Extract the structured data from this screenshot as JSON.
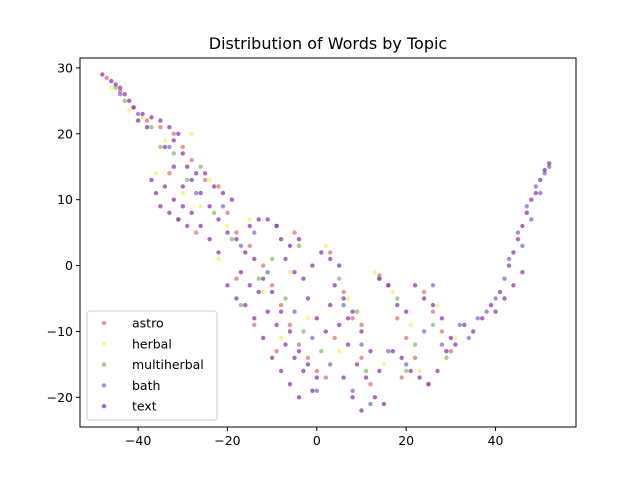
{
  "chart_data": {
    "type": "scatter",
    "title": "Distribution of Words by Topic",
    "xlabel": "",
    "ylabel": "",
    "xlim": [
      -53,
      58
    ],
    "ylim": [
      -24.5,
      31.5
    ],
    "xticks": [
      -40,
      -20,
      0,
      20,
      40
    ],
    "yticks": [
      -20,
      -10,
      0,
      10,
      20,
      30
    ],
    "grid": false,
    "legend": "lower-left",
    "series": [
      {
        "name": "astro",
        "color": "#e36a6a",
        "points": [
          [
            -47,
            28.5
          ],
          [
            -44,
            26.5
          ],
          [
            -41,
            24
          ],
          [
            -38,
            22
          ],
          [
            -35,
            21
          ],
          [
            -32,
            20
          ],
          [
            -30,
            18
          ],
          [
            -28,
            16
          ],
          [
            -25,
            13
          ],
          [
            -22,
            12
          ],
          [
            -20,
            8
          ],
          [
            -18,
            5
          ],
          [
            -15,
            3
          ],
          [
            -12,
            0
          ],
          [
            -10,
            -3
          ],
          [
            -8,
            -6
          ],
          [
            -6,
            -9
          ],
          [
            -4,
            -12
          ],
          [
            -2,
            -14
          ],
          [
            0,
            -16
          ],
          [
            3,
            2
          ],
          [
            6,
            -4
          ],
          [
            8,
            -8
          ],
          [
            10,
            -14
          ],
          [
            12,
            -18
          ],
          [
            14,
            -1.5
          ],
          [
            16,
            -3
          ],
          [
            18,
            -8
          ],
          [
            20,
            -11
          ],
          [
            22,
            -14
          ],
          [
            24,
            -4
          ],
          [
            26,
            -7
          ],
          [
            28,
            -10
          ],
          [
            30,
            -13
          ],
          [
            -33,
            14
          ],
          [
            -27,
            5
          ],
          [
            -14,
            -9
          ],
          [
            -9,
            -13
          ],
          [
            4,
            -11
          ],
          [
            2,
            -17
          ],
          [
            19,
            -17
          ],
          [
            25,
            -18
          ],
          [
            -18,
            -2
          ],
          [
            -5,
            5
          ],
          [
            10,
            -9
          ]
        ]
      },
      {
        "name": "herbal",
        "color": "#f5f06a",
        "points": [
          [
            -46,
            27
          ],
          [
            -42,
            23.5
          ],
          [
            -39,
            22.5
          ],
          [
            -34,
            19
          ],
          [
            -30,
            11
          ],
          [
            -26,
            9
          ],
          [
            -24,
            13
          ],
          [
            -20,
            6
          ],
          [
            -16,
            2
          ],
          [
            -12,
            -4
          ],
          [
            -6,
            -1
          ],
          [
            -2,
            -8
          ],
          [
            2,
            3
          ],
          [
            7,
            -5
          ],
          [
            13,
            -1
          ],
          [
            17,
            -4
          ],
          [
            21,
            -9
          ],
          [
            27,
            -6
          ],
          [
            31,
            -11
          ],
          [
            -36,
            14
          ],
          [
            -22,
            1
          ],
          [
            -8,
            -11
          ],
          [
            5,
            -13
          ],
          [
            15,
            -15
          ],
          [
            23,
            -16
          ],
          [
            -28,
            20
          ],
          [
            -15,
            7
          ]
        ]
      },
      {
        "name": "multiherbal",
        "color": "#7fb85a",
        "points": [
          [
            -45,
            27
          ],
          [
            -43,
            25
          ],
          [
            -37,
            21
          ],
          [
            -32,
            17
          ],
          [
            -29,
            13
          ],
          [
            -23,
            8
          ],
          [
            -19,
            4
          ],
          [
            -13,
            -2
          ],
          [
            -10,
            1
          ],
          [
            -7,
            -5
          ],
          [
            -3,
            -10
          ],
          [
            1,
            -13
          ],
          [
            5,
            -2
          ],
          [
            9,
            -7
          ],
          [
            14,
            -2
          ],
          [
            18,
            -5
          ],
          [
            22,
            -12
          ],
          [
            26,
            -9
          ],
          [
            29,
            -14
          ],
          [
            -31,
            7
          ],
          [
            -17,
            -6
          ],
          [
            -4,
            3
          ],
          [
            11,
            -16
          ],
          [
            20,
            -16
          ],
          [
            -35,
            18
          ],
          [
            -26,
            15
          ]
        ]
      },
      {
        "name": "bath",
        "color": "#6a6ad0",
        "points": [
          [
            -44,
            26
          ],
          [
            -40,
            23
          ],
          [
            -33,
            18
          ],
          [
            -27,
            11
          ],
          [
            -21,
            9
          ],
          [
            -17,
            3
          ],
          [
            -11,
            -1
          ],
          [
            -5,
            -7
          ],
          [
            -1,
            -11
          ],
          [
            3,
            -15
          ],
          [
            8,
            -19
          ],
          [
            12,
            -21
          ],
          [
            16,
            -13
          ],
          [
            20,
            -15
          ],
          [
            24,
            -10
          ],
          [
            28,
            -12
          ],
          [
            32,
            -9
          ],
          [
            36,
            -8
          ],
          [
            40,
            -5
          ],
          [
            43,
            1
          ],
          [
            45,
            5
          ],
          [
            47,
            9
          ],
          [
            49,
            12
          ],
          [
            51,
            14
          ],
          [
            -14,
            5
          ],
          [
            -9,
            6
          ],
          [
            0,
            -19
          ],
          [
            6,
            -6
          ],
          [
            10,
            -12
          ],
          [
            26,
            -3
          ],
          [
            34,
            -11
          ],
          [
            38,
            -7
          ],
          [
            42,
            -2
          ],
          [
            46,
            3
          ],
          [
            48,
            7
          ],
          [
            50,
            11
          ],
          [
            52,
            15
          ]
        ]
      },
      {
        "name": "text",
        "color": "#8a2aa8",
        "points": [
          [
            -48,
            29
          ],
          [
            -46,
            28
          ],
          [
            -44,
            27
          ],
          [
            -43,
            26
          ],
          [
            -41,
            24
          ],
          [
            -39,
            23
          ],
          [
            -37,
            22.5
          ],
          [
            -35,
            22
          ],
          [
            -33,
            21
          ],
          [
            -31,
            20
          ],
          [
            -34,
            18
          ],
          [
            -32,
            19
          ],
          [
            -30,
            17
          ],
          [
            -29,
            15
          ],
          [
            -27,
            14
          ],
          [
            -25,
            14
          ],
          [
            -23,
            12
          ],
          [
            -21,
            11
          ],
          [
            -19,
            10
          ],
          [
            -26,
            11
          ],
          [
            -24,
            9
          ],
          [
            -22,
            7
          ],
          [
            -20,
            5
          ],
          [
            -18,
            4
          ],
          [
            -16,
            2
          ],
          [
            -37,
            13
          ],
          [
            -36,
            11
          ],
          [
            -35,
            9
          ],
          [
            -33,
            8
          ],
          [
            -31,
            7
          ],
          [
            -29,
            6
          ],
          [
            -34,
            12
          ],
          [
            -32,
            10
          ],
          [
            -30,
            9
          ],
          [
            -28,
            13
          ],
          [
            -15,
            6
          ],
          [
            -13,
            7
          ],
          [
            -11,
            7
          ],
          [
            -9,
            6
          ],
          [
            -8,
            4
          ],
          [
            -6,
            3
          ],
          [
            -4,
            4
          ],
          [
            -7,
            1
          ],
          [
            -5,
            -1
          ],
          [
            -14,
            1
          ],
          [
            -12,
            -2
          ],
          [
            -10,
            -4
          ],
          [
            -8,
            -7
          ],
          [
            -6,
            -10
          ],
          [
            -4,
            -13
          ],
          [
            -2,
            -15
          ],
          [
            0,
            -17
          ],
          [
            -13,
            -4
          ],
          [
            -11,
            -7
          ],
          [
            -9,
            -9
          ],
          [
            -7,
            -12
          ],
          [
            -5,
            -14
          ],
          [
            -3,
            -16
          ],
          [
            -1,
            -19
          ],
          [
            -17,
            -1
          ],
          [
            -15,
            -3
          ],
          [
            -16,
            -6
          ],
          [
            -14,
            -8
          ],
          [
            -12,
            -11
          ],
          [
            -10,
            -14
          ],
          [
            -8,
            -16
          ],
          [
            -6,
            -18
          ],
          [
            -4,
            -20
          ],
          [
            1,
            2
          ],
          [
            3,
            1
          ],
          [
            5,
            0
          ],
          [
            4,
            -3
          ],
          [
            6,
            -5
          ],
          [
            8,
            -7
          ],
          [
            10,
            -10
          ],
          [
            12,
            -13
          ],
          [
            14,
            -16
          ],
          [
            7,
            -12
          ],
          [
            9,
            -15
          ],
          [
            11,
            -17
          ],
          [
            13,
            -20
          ],
          [
            15,
            -21
          ],
          [
            5,
            -9
          ],
          [
            7,
            -8
          ],
          [
            3,
            -6
          ],
          [
            14,
            -2
          ],
          [
            16,
            -3
          ],
          [
            18,
            -6
          ],
          [
            20,
            -7
          ],
          [
            22,
            -3
          ],
          [
            24,
            -5
          ],
          [
            26,
            -6
          ],
          [
            28,
            -8
          ],
          [
            30,
            -11
          ],
          [
            17,
            -13
          ],
          [
            19,
            -14
          ],
          [
            21,
            -16
          ],
          [
            23,
            -17
          ],
          [
            25,
            -18
          ],
          [
            27,
            -16
          ],
          [
            29,
            -13
          ],
          [
            31,
            -12
          ],
          [
            33,
            -9
          ],
          [
            35,
            -10
          ],
          [
            37,
            -8
          ],
          [
            39,
            -6
          ],
          [
            41,
            -4
          ],
          [
            43,
            0
          ],
          [
            44,
            2
          ],
          [
            45,
            4
          ],
          [
            46,
            6
          ],
          [
            47,
            8
          ],
          [
            48,
            10
          ],
          [
            49,
            11
          ],
          [
            50,
            13
          ],
          [
            51,
            14.5
          ],
          [
            52,
            15.5
          ],
          [
            46,
            -1
          ],
          [
            44,
            -3
          ],
          [
            42,
            -5
          ],
          [
            40,
            -7
          ],
          [
            -2,
            -5
          ],
          [
            0,
            -8
          ],
          [
            2,
            -10
          ],
          [
            -3,
            -2
          ],
          [
            -1,
            0
          ],
          [
            6,
            -17
          ],
          [
            8,
            -20
          ],
          [
            10,
            -22
          ],
          [
            -20,
            -3
          ],
          [
            -18,
            -5
          ],
          [
            -22,
            2
          ],
          [
            -24,
            4
          ],
          [
            -26,
            6
          ],
          [
            -28,
            8
          ],
          [
            -30,
            12
          ],
          [
            -32,
            15
          ],
          [
            -38,
            21
          ],
          [
            -40,
            22
          ],
          [
            -42,
            25
          ],
          [
            -45,
            27.5
          ]
        ]
      }
    ]
  }
}
